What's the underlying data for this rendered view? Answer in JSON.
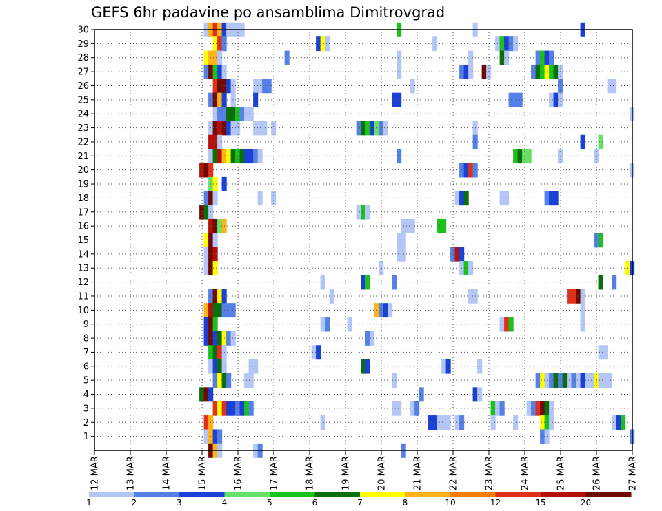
{
  "chart_data": {
    "type": "heatmap",
    "title": "GEFS 6hr padavine po ansamblima Dimitrovgrad",
    "xlabel": "",
    "ylabel": "",
    "x_tick_labels": [
      "12 MAR",
      "13 MAR",
      "14 MAR",
      "15 MAR",
      "16 MAR",
      "17 MAR",
      "18 MAR",
      "19 MAR",
      "20 MAR",
      "21 MAR",
      "22 MAR",
      "23 MAR",
      "24 MAR",
      "25 MAR",
      "26 MAR",
      "27 MAR"
    ],
    "y_tick_labels": [
      "1",
      "2",
      "3",
      "4",
      "5",
      "6",
      "7",
      "8",
      "9",
      "10",
      "11",
      "12",
      "13",
      "14",
      "15",
      "16",
      "17",
      "18",
      "19",
      "20",
      "21",
      "22",
      "23",
      "24",
      "25",
      "26",
      "27",
      "28",
      "29",
      "30"
    ],
    "xlim": [
      0,
      60
    ],
    "ylim": [
      0,
      30
    ],
    "grid": true,
    "legend": {
      "position": "bottom",
      "labels": [
        "1",
        "2",
        "3",
        "4",
        "5",
        "6",
        "7",
        "8",
        "10",
        "12",
        "15",
        "20"
      ],
      "colors": [
        "#b3c6f5",
        "#5580e6",
        "#1a40d6",
        "#66e066",
        "#1cc21c",
        "#0a6e0a",
        "#ffff00",
        "#ffb31a",
        "#f57d0a",
        "#e0301a",
        "#b3100a",
        "#6e0a00"
      ]
    },
    "cells": [
      [
        30,
        12.2,
        1
      ],
      [
        30,
        12.7,
        8
      ],
      [
        30,
        13.2,
        10
      ],
      [
        30,
        13.7,
        8
      ],
      [
        30,
        14.2,
        3
      ],
      [
        30,
        14.7,
        1
      ],
      [
        30,
        15.2,
        1
      ],
      [
        30,
        15.7,
        1
      ],
      [
        30,
        16.2,
        1
      ],
      [
        30,
        33.7,
        5
      ],
      [
        30,
        42.2,
        1
      ],
      [
        30,
        54.2,
        3
      ],
      [
        29,
        13.2,
        7
      ],
      [
        29,
        13.7,
        10
      ],
      [
        29,
        14.2,
        2
      ],
      [
        29,
        24.7,
        3
      ],
      [
        29,
        25.2,
        7
      ],
      [
        29,
        25.7,
        1
      ],
      [
        29,
        37.7,
        1
      ],
      [
        29,
        44.7,
        1
      ],
      [
        29,
        45.2,
        5
      ],
      [
        29,
        45.7,
        3
      ],
      [
        29,
        46.2,
        2
      ],
      [
        29,
        46.7,
        1
      ],
      [
        28,
        12.2,
        7
      ],
      [
        28,
        12.7,
        8
      ],
      [
        28,
        13.2,
        8
      ],
      [
        28,
        13.7,
        1
      ],
      [
        28,
        21.2,
        2
      ],
      [
        28,
        33.7,
        1
      ],
      [
        28,
        41.7,
        1
      ],
      [
        28,
        45.2,
        6
      ],
      [
        28,
        45.7,
        1
      ],
      [
        28,
        49.2,
        2
      ],
      [
        28,
        49.7,
        5
      ],
      [
        28,
        50.2,
        3
      ],
      [
        28,
        50.7,
        2
      ],
      [
        27,
        12.2,
        2
      ],
      [
        27,
        12.7,
        14
      ],
      [
        27,
        13.2,
        5
      ],
      [
        27,
        13.7,
        3
      ],
      [
        27,
        14.2,
        1
      ],
      [
        27,
        33.7,
        1
      ],
      [
        27,
        40.7,
        2
      ],
      [
        27,
        41.2,
        3
      ],
      [
        27,
        41.7,
        1
      ],
      [
        27,
        43.2,
        12
      ],
      [
        27,
        43.7,
        1
      ],
      [
        27,
        48.7,
        2
      ],
      [
        27,
        49.2,
        6
      ],
      [
        27,
        49.7,
        5
      ],
      [
        27,
        50.2,
        7
      ],
      [
        27,
        50.7,
        5
      ],
      [
        27,
        51.2,
        6
      ],
      [
        27,
        51.7,
        1
      ],
      [
        26,
        13.2,
        10
      ],
      [
        26,
        13.7,
        20
      ],
      [
        26,
        14.2,
        14
      ],
      [
        26,
        14.7,
        3
      ],
      [
        26,
        15.2,
        1
      ],
      [
        26,
        17.7,
        1
      ],
      [
        26,
        18.2,
        1
      ],
      [
        26,
        18.7,
        2
      ],
      [
        26,
        19.2,
        2
      ],
      [
        26,
        35.2,
        1
      ],
      [
        26,
        51.7,
        2
      ],
      [
        26,
        57.2,
        1
      ],
      [
        26,
        57.7,
        1
      ],
      [
        25,
        12.7,
        2
      ],
      [
        25,
        13.2,
        12
      ],
      [
        25,
        13.7,
        8
      ],
      [
        25,
        14.2,
        3
      ],
      [
        25,
        15.2,
        1
      ],
      [
        25,
        17.7,
        3
      ],
      [
        25,
        33.2,
        3
      ],
      [
        25,
        33.7,
        3
      ],
      [
        25,
        46.2,
        2
      ],
      [
        25,
        46.7,
        2
      ],
      [
        25,
        47.2,
        2
      ],
      [
        25,
        50.7,
        1
      ],
      [
        25,
        51.2,
        3
      ],
      [
        25,
        51.7,
        1
      ],
      [
        24,
        13.2,
        1
      ],
      [
        24,
        13.7,
        2
      ],
      [
        24,
        14.2,
        2
      ],
      [
        24,
        14.7,
        6
      ],
      [
        24,
        15.2,
        6
      ],
      [
        24,
        15.7,
        5
      ],
      [
        24,
        16.2,
        2
      ],
      [
        24,
        16.7,
        1
      ],
      [
        24,
        17.2,
        1
      ],
      [
        24,
        59.7,
        1
      ],
      [
        23,
        12.7,
        1
      ],
      [
        23,
        13.2,
        14
      ],
      [
        23,
        13.7,
        11
      ],
      [
        23,
        14.2,
        12
      ],
      [
        23,
        14.7,
        3
      ],
      [
        23,
        15.2,
        1
      ],
      [
        23,
        15.7,
        1
      ],
      [
        23,
        17.7,
        1
      ],
      [
        23,
        18.2,
        1
      ],
      [
        23,
        18.7,
        1
      ],
      [
        23,
        19.7,
        1
      ],
      [
        23,
        29.2,
        2
      ],
      [
        23,
        29.7,
        6
      ],
      [
        23,
        30.2,
        5
      ],
      [
        23,
        30.7,
        3
      ],
      [
        23,
        31.2,
        4
      ],
      [
        23,
        31.7,
        2
      ],
      [
        23,
        32.2,
        1
      ],
      [
        23,
        42.2,
        1
      ],
      [
        22,
        12.7,
        11
      ],
      [
        22,
        13.2,
        11
      ],
      [
        22,
        13.7,
        1
      ],
      [
        22,
        42.2,
        2
      ],
      [
        22,
        54.2,
        3
      ],
      [
        22,
        56.2,
        4
      ],
      [
        21,
        12.7,
        1
      ],
      [
        21,
        13.2,
        6
      ],
      [
        21,
        13.7,
        11
      ],
      [
        21,
        14.2,
        8
      ],
      [
        21,
        14.7,
        7
      ],
      [
        21,
        15.2,
        6
      ],
      [
        21,
        15.7,
        5
      ],
      [
        21,
        16.2,
        6
      ],
      [
        21,
        16.7,
        3
      ],
      [
        21,
        17.2,
        3
      ],
      [
        21,
        17.7,
        2
      ],
      [
        21,
        18.2,
        1
      ],
      [
        21,
        33.7,
        2
      ],
      [
        21,
        46.7,
        5
      ],
      [
        21,
        47.2,
        6
      ],
      [
        21,
        47.7,
        4
      ],
      [
        21,
        48.2,
        4
      ],
      [
        21,
        51.7,
        1
      ],
      [
        21,
        55.7,
        1
      ],
      [
        20,
        11.7,
        11
      ],
      [
        20,
        12.2,
        14
      ],
      [
        20,
        12.7,
        10
      ],
      [
        20,
        40.7,
        2
      ],
      [
        20,
        41.2,
        3
      ],
      [
        20,
        41.7,
        10
      ],
      [
        20,
        42.2,
        2
      ],
      [
        20,
        59.7,
        1
      ],
      [
        19,
        12.7,
        4
      ],
      [
        19,
        13.2,
        7
      ],
      [
        19,
        14.2,
        3
      ],
      [
        18,
        12.2,
        2
      ],
      [
        18,
        12.7,
        14
      ],
      [
        18,
        13.2,
        1
      ],
      [
        18,
        18.2,
        1
      ],
      [
        18,
        19.7,
        1
      ],
      [
        18,
        40.2,
        1
      ],
      [
        18,
        40.7,
        3
      ],
      [
        18,
        41.2,
        6
      ],
      [
        18,
        45.2,
        1
      ],
      [
        18,
        45.7,
        1
      ],
      [
        18,
        50.2,
        2
      ],
      [
        18,
        50.7,
        3
      ],
      [
        18,
        51.2,
        3
      ],
      [
        17,
        11.7,
        12
      ],
      [
        17,
        12.2,
        6
      ],
      [
        17,
        12.7,
        1
      ],
      [
        17,
        29.2,
        1
      ],
      [
        17,
        29.7,
        5
      ],
      [
        17,
        30.2,
        1
      ],
      [
        16,
        12.7,
        11
      ],
      [
        16,
        13.2,
        14
      ],
      [
        16,
        13.7,
        4
      ],
      [
        16,
        14.2,
        8
      ],
      [
        16,
        34.2,
        1
      ],
      [
        16,
        34.7,
        1
      ],
      [
        16,
        35.2,
        1
      ],
      [
        16,
        38.2,
        5
      ],
      [
        16,
        38.7,
        5
      ],
      [
        15,
        12.2,
        7
      ],
      [
        15,
        12.7,
        12
      ],
      [
        15,
        13.2,
        1
      ],
      [
        15,
        33.7,
        1
      ],
      [
        15,
        34.2,
        1
      ],
      [
        15,
        55.7,
        2
      ],
      [
        15,
        56.2,
        5
      ],
      [
        14,
        12.2,
        1
      ],
      [
        14,
        12.7,
        12
      ],
      [
        14,
        13.2,
        11
      ],
      [
        14,
        33.7,
        1
      ],
      [
        14,
        34.2,
        1
      ],
      [
        14,
        39.7,
        2
      ],
      [
        14,
        40.2,
        11
      ],
      [
        14,
        40.7,
        3
      ],
      [
        13,
        12.2,
        1
      ],
      [
        13,
        12.7,
        14
      ],
      [
        13,
        13.2,
        7
      ],
      [
        13,
        31.7,
        1
      ],
      [
        13,
        40.7,
        1
      ],
      [
        13,
        41.2,
        5
      ],
      [
        13,
        41.7,
        1
      ],
      [
        13,
        59.2,
        7
      ],
      [
        13,
        59.7,
        3
      ],
      [
        12,
        25.2,
        1
      ],
      [
        12,
        29.7,
        3
      ],
      [
        12,
        30.2,
        5
      ],
      [
        12,
        33.2,
        2
      ],
      [
        12,
        56.2,
        6
      ],
      [
        12,
        57.7,
        2
      ],
      [
        11,
        12.7,
        2
      ],
      [
        11,
        13.2,
        14
      ],
      [
        11,
        13.7,
        7
      ],
      [
        11,
        14.2,
        3
      ],
      [
        11,
        26.2,
        1
      ],
      [
        11,
        41.7,
        1
      ],
      [
        11,
        42.2,
        1
      ],
      [
        11,
        52.7,
        10
      ],
      [
        11,
        53.2,
        10
      ],
      [
        11,
        53.7,
        13
      ],
      [
        11,
        54.2,
        1
      ],
      [
        10,
        12.2,
        8
      ],
      [
        10,
        12.7,
        11
      ],
      [
        10,
        13.2,
        6
      ],
      [
        10,
        13.7,
        6
      ],
      [
        10,
        14.2,
        2
      ],
      [
        10,
        14.7,
        2
      ],
      [
        10,
        15.2,
        2
      ],
      [
        10,
        31.2,
        8
      ],
      [
        10,
        31.7,
        2
      ],
      [
        10,
        32.2,
        3
      ],
      [
        10,
        32.7,
        1
      ],
      [
        10,
        54.2,
        1
      ],
      [
        9,
        12.2,
        3
      ],
      [
        9,
        12.7,
        20
      ],
      [
        9,
        13.2,
        5
      ],
      [
        9,
        25.2,
        1
      ],
      [
        9,
        25.7,
        2
      ],
      [
        9,
        28.2,
        1
      ],
      [
        9,
        45.2,
        1
      ],
      [
        9,
        45.7,
        10
      ],
      [
        9,
        46.2,
        5
      ],
      [
        9,
        54.2,
        1
      ],
      [
        8,
        12.2,
        3
      ],
      [
        8,
        12.7,
        12
      ],
      [
        8,
        13.2,
        3
      ],
      [
        8,
        13.7,
        6
      ],
      [
        8,
        14.2,
        7
      ],
      [
        8,
        14.7,
        2
      ],
      [
        8,
        15.2,
        1
      ],
      [
        8,
        30.2,
        2
      ],
      [
        8,
        30.7,
        1
      ],
      [
        7,
        12.7,
        5
      ],
      [
        7,
        13.2,
        6
      ],
      [
        7,
        13.7,
        10
      ],
      [
        7,
        14.2,
        1
      ],
      [
        7,
        24.2,
        1
      ],
      [
        7,
        24.7,
        3
      ],
      [
        7,
        56.2,
        1
      ],
      [
        7,
        56.7,
        1
      ],
      [
        6,
        12.7,
        1
      ],
      [
        6,
        13.2,
        3
      ],
      [
        6,
        13.7,
        6
      ],
      [
        6,
        14.2,
        1
      ],
      [
        6,
        17.2,
        1
      ],
      [
        6,
        17.7,
        1
      ],
      [
        6,
        29.7,
        6
      ],
      [
        6,
        30.2,
        3
      ],
      [
        6,
        38.7,
        1
      ],
      [
        6,
        39.2,
        3
      ],
      [
        6,
        42.7,
        1
      ],
      [
        5,
        13.2,
        2
      ],
      [
        5,
        13.7,
        7
      ],
      [
        5,
        14.2,
        6
      ],
      [
        5,
        14.7,
        2
      ],
      [
        5,
        16.7,
        1
      ],
      [
        5,
        17.2,
        1
      ],
      [
        5,
        33.2,
        1
      ],
      [
        5,
        49.2,
        2
      ],
      [
        5,
        49.7,
        7
      ],
      [
        5,
        50.2,
        1
      ],
      [
        5,
        50.7,
        2
      ],
      [
        5,
        51.2,
        6
      ],
      [
        5,
        51.7,
        2
      ],
      [
        5,
        52.2,
        6
      ],
      [
        5,
        52.7,
        1
      ],
      [
        5,
        53.2,
        2
      ],
      [
        5,
        53.7,
        1
      ],
      [
        5,
        54.2,
        3
      ],
      [
        5,
        54.7,
        1
      ],
      [
        5,
        55.2,
        1
      ],
      [
        5,
        55.7,
        7
      ],
      [
        5,
        56.2,
        1
      ],
      [
        5,
        56.7,
        1
      ],
      [
        5,
        57.2,
        1
      ],
      [
        4,
        11.7,
        6
      ],
      [
        4,
        12.2,
        15
      ],
      [
        4,
        12.7,
        3
      ],
      [
        4,
        36.2,
        2
      ],
      [
        4,
        42.2,
        3
      ],
      [
        4,
        42.7,
        1
      ],
      [
        3,
        13.2,
        10
      ],
      [
        3,
        13.7,
        7
      ],
      [
        3,
        14.2,
        10
      ],
      [
        3,
        14.7,
        3
      ],
      [
        3,
        15.2,
        3
      ],
      [
        3,
        15.7,
        2
      ],
      [
        3,
        16.2,
        3
      ],
      [
        3,
        16.7,
        5
      ],
      [
        3,
        17.2,
        2
      ],
      [
        3,
        33.2,
        1
      ],
      [
        3,
        33.7,
        1
      ],
      [
        3,
        35.2,
        1
      ],
      [
        3,
        35.7,
        2
      ],
      [
        3,
        44.2,
        5
      ],
      [
        3,
        44.7,
        1
      ],
      [
        3,
        45.2,
        2
      ],
      [
        3,
        48.2,
        1
      ],
      [
        3,
        48.7,
        2
      ],
      [
        3,
        49.2,
        10
      ],
      [
        3,
        49.7,
        15
      ],
      [
        3,
        50.2,
        6
      ],
      [
        3,
        50.7,
        1
      ],
      [
        2,
        12.2,
        10
      ],
      [
        2,
        12.7,
        8
      ],
      [
        2,
        25.2,
        1
      ],
      [
        2,
        37.2,
        3
      ],
      [
        2,
        37.7,
        3
      ],
      [
        2,
        38.2,
        1
      ],
      [
        2,
        38.7,
        1
      ],
      [
        2,
        39.2,
        1
      ],
      [
        2,
        40.2,
        1
      ],
      [
        2,
        40.7,
        2
      ],
      [
        2,
        44.2,
        1
      ],
      [
        2,
        46.7,
        1
      ],
      [
        2,
        49.7,
        7
      ],
      [
        2,
        50.2,
        5
      ],
      [
        2,
        50.7,
        1
      ],
      [
        2,
        57.7,
        1
      ],
      [
        2,
        58.2,
        3
      ],
      [
        2,
        58.7,
        5
      ],
      [
        1,
        12.2,
        1
      ],
      [
        1,
        12.7,
        8
      ],
      [
        1,
        13.2,
        3
      ],
      [
        1,
        13.7,
        2
      ],
      [
        1,
        49.7,
        2
      ],
      [
        1,
        50.2,
        1
      ],
      [
        1,
        59.7,
        2
      ],
      [
        0,
        12.7,
        20
      ],
      [
        0,
        13.2,
        8
      ],
      [
        0,
        13.7,
        1
      ],
      [
        0,
        17.7,
        1
      ],
      [
        0,
        18.2,
        2
      ],
      [
        0,
        34.2,
        2
      ]
    ]
  }
}
